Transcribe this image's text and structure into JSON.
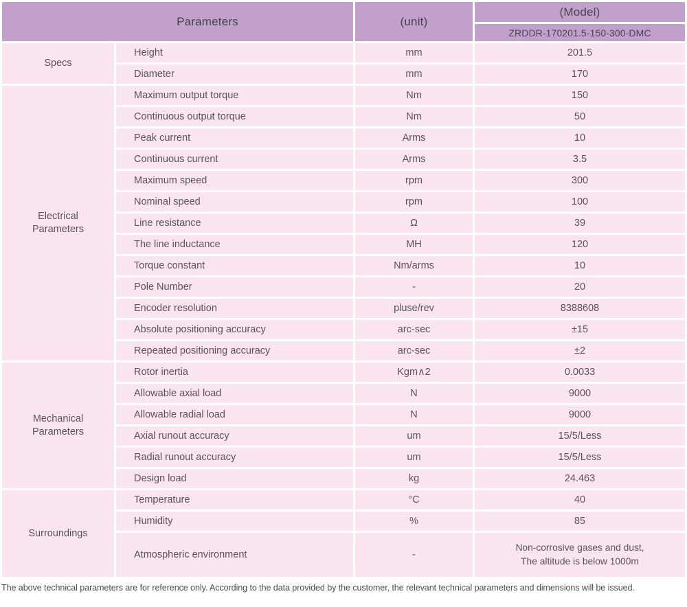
{
  "colors": {
    "header_bg": "#c1a1cc",
    "row_bg": "#fae4ef",
    "gap": "#ffffff",
    "header_text": "#4a4450",
    "body_text": "#595358",
    "footer_text": "#4b4b4b"
  },
  "header": {
    "parameters_label": "Parameters",
    "unit_label": "(unit)",
    "model_label": "(Model)",
    "model_value": "ZRDDR-170201.5-150-300-DMC"
  },
  "sections": [
    {
      "group": "Specs",
      "rows": [
        {
          "param": "Height",
          "unit": "mm",
          "value": "201.5"
        },
        {
          "param": "Diameter",
          "unit": "mm",
          "value": "170"
        }
      ]
    },
    {
      "group": "Electrical Parameters",
      "rows": [
        {
          "param": "Maximum output torque",
          "unit": "Nm",
          "value": "150"
        },
        {
          "param": "Continuous output torque",
          "unit": "Nm",
          "value": "50"
        },
        {
          "param": "Peak current",
          "unit": "Arms",
          "value": "10"
        },
        {
          "param": "Continuous current",
          "unit": "Arms",
          "value": "3.5"
        },
        {
          "param": "Maximum speed",
          "unit": "rpm",
          "value": "300"
        },
        {
          "param": "Nominal speed",
          "unit": "rpm",
          "value": "100"
        },
        {
          "param": "Line resistance",
          "unit": "Ω",
          "value": "39"
        },
        {
          "param": "The line inductance",
          "unit": "MH",
          "value": "120"
        },
        {
          "param": "Torque constant",
          "unit": "Nm/arms",
          "value": "10"
        },
        {
          "param": "Pole Number",
          "unit": "-",
          "value": "20"
        },
        {
          "param": "Encoder resolution",
          "unit": "pluse/rev",
          "value": "8388608"
        },
        {
          "param": "Absolute positioning accuracy",
          "unit": "arc-sec",
          "value": "±15"
        },
        {
          "param": "Repeated positioning accuracy",
          "unit": "arc-sec",
          "value": "±2"
        }
      ]
    },
    {
      "group": "Mechanical Parameters",
      "rows": [
        {
          "param": "Rotor inertia",
          "unit": "Kgm∧2",
          "value": "0.0033"
        },
        {
          "param": "Allowable axial load",
          "unit": "N",
          "value": "9000"
        },
        {
          "param": "Allowable radial load",
          "unit": "N",
          "value": "9000"
        },
        {
          "param": "Axial runout accuracy",
          "unit": "um",
          "value": "15/5/Less"
        },
        {
          "param": "Radial runout accuracy",
          "unit": "um",
          "value": "15/5/Less"
        },
        {
          "param": "Design load",
          "unit": "kg",
          "value": "24.463"
        }
      ]
    },
    {
      "group": "Surroundings",
      "rows": [
        {
          "param": "Temperature",
          "unit": "°C",
          "value": "40"
        },
        {
          "param": "Humidity",
          "unit": "%",
          "value": "85"
        },
        {
          "param": "Atmospheric environment",
          "unit": "-",
          "value": "Non-corrosive gases and dust,",
          "value2": "The altitude is below 1000m",
          "tall": true
        }
      ]
    }
  ],
  "footer": {
    "note": "The above technical parameters are for reference only. According to the data provided by the customer, the relevant technical parameters and dimensions will be issued."
  }
}
